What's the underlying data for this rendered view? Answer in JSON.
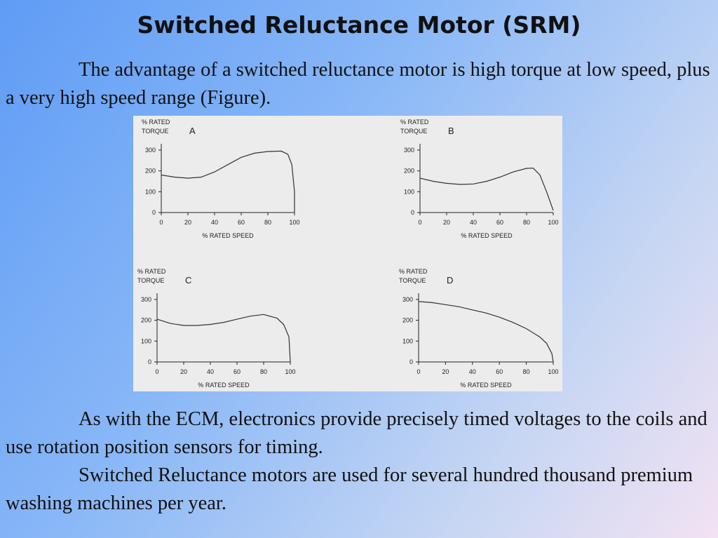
{
  "title": "Switched Reluctance Motor (SRM)",
  "paragraphs": [
    "The advantage of a switched reluctance motor is high torque at low speed, plus a very high speed range (Figure).",
    "As with the ECM, electronics provide precisely timed voltages to the coils and use rotation position sensors for timing.",
    "Switched Reluctance motors are used for several hundred thousand premium washing machines per year."
  ],
  "chart_data": [
    {
      "type": "line",
      "title": "A",
      "ylabel": [
        "% RATED",
        "TORQUE"
      ],
      "xlabel": "% RATED SPEED",
      "color": "#333333",
      "x": [
        0,
        10,
        20,
        30,
        40,
        50,
        60,
        70,
        80,
        90,
        95,
        98,
        100,
        100
      ],
      "values": [
        180,
        170,
        165,
        170,
        195,
        230,
        265,
        285,
        293,
        295,
        280,
        230,
        100,
        0
      ],
      "xlim": [
        0,
        100
      ],
      "ylim": [
        0,
        330
      ],
      "xticks": [
        0,
        20,
        40,
        60,
        80,
        100
      ],
      "yticks": [
        0,
        100,
        200,
        300
      ]
    },
    {
      "type": "line",
      "title": "B",
      "ylabel": [
        "% RATED",
        "TORQUE"
      ],
      "xlabel": "% RATED SPEED",
      "color": "#333333",
      "x": [
        0,
        10,
        20,
        30,
        40,
        50,
        60,
        70,
        80,
        85,
        90,
        95,
        100
      ],
      "values": [
        165,
        150,
        140,
        135,
        137,
        150,
        170,
        195,
        212,
        213,
        180,
        100,
        10
      ],
      "xlim": [
        0,
        100
      ],
      "ylim": [
        0,
        330
      ],
      "xticks": [
        0,
        20,
        40,
        60,
        80,
        100
      ],
      "yticks": [
        0,
        100,
        200,
        300
      ]
    },
    {
      "type": "line",
      "title": "C",
      "ylabel": [
        "% RATED",
        "TORQUE"
      ],
      "xlabel": "% RATED SPEED",
      "color": "#333333",
      "x": [
        0,
        10,
        20,
        30,
        40,
        50,
        60,
        70,
        80,
        90,
        95,
        99,
        100
      ],
      "values": [
        205,
        185,
        175,
        175,
        180,
        190,
        205,
        220,
        228,
        210,
        180,
        120,
        0
      ],
      "xlim": [
        0,
        100
      ],
      "ylim": [
        0,
        330
      ],
      "xticks": [
        0,
        20,
        40,
        60,
        80,
        100
      ],
      "yticks": [
        0,
        100,
        200,
        300
      ]
    },
    {
      "type": "line",
      "title": "D",
      "ylabel": [
        "% RATED",
        "TORQUE"
      ],
      "xlabel": "% RATED SPEED",
      "color": "#333333",
      "x": [
        0,
        10,
        20,
        30,
        40,
        50,
        60,
        70,
        80,
        90,
        95,
        99,
        100
      ],
      "values": [
        290,
        285,
        275,
        265,
        250,
        235,
        215,
        190,
        160,
        120,
        90,
        40,
        0
      ],
      "xlim": [
        0,
        100
      ],
      "ylim": [
        0,
        330
      ],
      "xticks": [
        0,
        20,
        40,
        60,
        80,
        100
      ],
      "yticks": [
        0,
        100,
        200,
        300
      ]
    }
  ]
}
